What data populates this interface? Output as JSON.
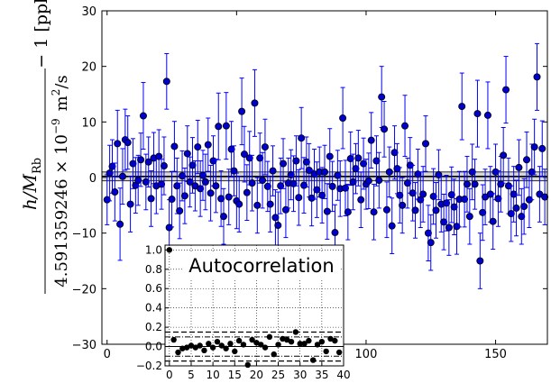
{
  "chart_data": [
    {
      "type": "scatter",
      "title": "",
      "xlabel": "",
      "ylabel_parts": {
        "numerator": "h/M",
        "numerator_sub": "Rb",
        "denominator": "4.591359246 × 10",
        "denominator_exp": "−9",
        "denominator_unit": "m",
        "denominator_unit_exp": "2",
        "denominator_tail": "/s",
        "suffix": "− 1 [ppb]"
      },
      "xlim": [
        -2,
        170
      ],
      "ylim": [
        -30,
        30
      ],
      "x_ticks": [
        0,
        50,
        100,
        150
      ],
      "x_tick_labels": [
        "0",
        "50",
        "100",
        "150"
      ],
      "y_ticks": [
        -30,
        -20,
        -10,
        0,
        10,
        20,
        30
      ],
      "y_tick_labels": [
        "−30",
        "−20",
        "−10",
        "0",
        "10",
        "20",
        "30"
      ],
      "reference_line": {
        "y": 0.2,
        "band": [
          -0.6,
          1.0
        ]
      },
      "marker_color": "#0000cc",
      "error_color": "#0000ff",
      "points": [
        {
          "x": 0,
          "y": -4.0,
          "e": 4.5
        },
        {
          "x": 1,
          "y": 0.8,
          "e": 5.0
        },
        {
          "x": 2,
          "y": 2.0,
          "e": 4.8
        },
        {
          "x": 3,
          "y": -2.6,
          "e": 5.2
        },
        {
          "x": 4,
          "y": 6.1,
          "e": 6.0
        },
        {
          "x": 5,
          "y": -8.4,
          "e": 6.5
        },
        {
          "x": 6,
          "y": 0.2,
          "e": 5.0
        },
        {
          "x": 7,
          "y": 6.8,
          "e": 5.5
        },
        {
          "x": 8,
          "y": 6.3,
          "e": 4.8
        },
        {
          "x": 9,
          "y": -4.8,
          "e": 5.0
        },
        {
          "x": 10,
          "y": 2.5,
          "e": 4.5
        },
        {
          "x": 11,
          "y": -1.4,
          "e": 5.0
        },
        {
          "x": 12,
          "y": -0.5,
          "e": 4.5
        },
        {
          "x": 13,
          "y": 3.2,
          "e": 4.8
        },
        {
          "x": 14,
          "y": 11.1,
          "e": 6.0
        },
        {
          "x": 15,
          "y": -0.8,
          "e": 5.0
        },
        {
          "x": 16,
          "y": 2.8,
          "e": 4.5
        },
        {
          "x": 17,
          "y": -3.8,
          "e": 5.0
        },
        {
          "x": 18,
          "y": 3.5,
          "e": 4.6
        },
        {
          "x": 19,
          "y": -1.5,
          "e": 5.0
        },
        {
          "x": 20,
          "y": 3.8,
          "e": 4.8
        },
        {
          "x": 21,
          "y": -1.2,
          "e": 4.5
        },
        {
          "x": 22,
          "y": 2.1,
          "e": 5.2
        },
        {
          "x": 23,
          "y": 17.3,
          "e": 5.0
        },
        {
          "x": 24,
          "y": -9.0,
          "e": 5.0
        },
        {
          "x": 25,
          "y": -3.9,
          "e": 5.0
        },
        {
          "x": 26,
          "y": 5.6,
          "e": 4.5
        },
        {
          "x": 27,
          "y": -1.5,
          "e": 5.0
        },
        {
          "x": 28,
          "y": -6.0,
          "e": 5.0
        },
        {
          "x": 29,
          "y": 0.3,
          "e": 4.5
        },
        {
          "x": 30,
          "y": -3.3,
          "e": 5.0
        },
        {
          "x": 31,
          "y": 4.3,
          "e": 5.0
        },
        {
          "x": 32,
          "y": -0.8,
          "e": 4.5
        },
        {
          "x": 33,
          "y": 2.2,
          "e": 5.0
        },
        {
          "x": 34,
          "y": -1.5,
          "e": 4.5
        },
        {
          "x": 35,
          "y": 5.5,
          "e": 4.8
        },
        {
          "x": 36,
          "y": -2.0,
          "e": 5.0
        },
        {
          "x": 37,
          "y": 0.4,
          "e": 4.5
        },
        {
          "x": 38,
          "y": -0.8,
          "e": 5.0
        },
        {
          "x": 39,
          "y": 5.9,
          "e": 4.8
        },
        {
          "x": 40,
          "y": -2.8,
          "e": 5.0
        },
        {
          "x": 41,
          "y": 3.0,
          "e": 4.5
        },
        {
          "x": 42,
          "y": -1.5,
          "e": 4.8
        },
        {
          "x": 43,
          "y": 9.2,
          "e": 6.0
        },
        {
          "x": 44,
          "y": -3.8,
          "e": 5.0
        },
        {
          "x": 45,
          "y": -7.0,
          "e": 5.0
        },
        {
          "x": 46,
          "y": 9.3,
          "e": 6.0
        },
        {
          "x": 47,
          "y": -3.5,
          "e": 5.0
        },
        {
          "x": 48,
          "y": 5.1,
          "e": 5.0
        },
        {
          "x": 49,
          "y": 1.2,
          "e": 4.5
        },
        {
          "x": 50,
          "y": -4.2,
          "e": 5.0
        },
        {
          "x": 51,
          "y": -4.8,
          "e": 5.0
        },
        {
          "x": 52,
          "y": 11.9,
          "e": 6.0
        },
        {
          "x": 53,
          "y": 4.2,
          "e": 5.0
        },
        {
          "x": 54,
          "y": -2.7,
          "e": 5.0
        },
        {
          "x": 55,
          "y": 3.5,
          "e": 4.8
        },
        {
          "x": 56,
          "y": -1.0,
          "e": 5.0
        },
        {
          "x": 57,
          "y": 13.4,
          "e": 6.0
        },
        {
          "x": 58,
          "y": -5.0,
          "e": 5.0
        },
        {
          "x": 59,
          "y": 3.5,
          "e": 4.5
        },
        {
          "x": 60,
          "y": -0.5,
          "e": 5.0
        },
        {
          "x": 61,
          "y": 5.5,
          "e": 5.0
        },
        {
          "x": 62,
          "y": -1.6,
          "e": 4.5
        },
        {
          "x": 63,
          "y": -4.8,
          "e": 5.0
        },
        {
          "x": 64,
          "y": 1.2,
          "e": 4.5
        },
        {
          "x": 65,
          "y": -7.2,
          "e": 5.0
        },
        {
          "x": 66,
          "y": -8.6,
          "e": 6.0
        },
        {
          "x": 67,
          "y": -1.5,
          "e": 5.0
        },
        {
          "x": 68,
          "y": 2.5,
          "e": 4.5
        },
        {
          "x": 69,
          "y": -5.8,
          "e": 5.0
        },
        {
          "x": 70,
          "y": -1.0,
          "e": 4.5
        },
        {
          "x": 71,
          "y": 0.5,
          "e": 4.5
        },
        {
          "x": 72,
          "y": -1.1,
          "e": 5.0
        },
        {
          "x": 73,
          "y": 3.0,
          "e": 4.5
        },
        {
          "x": 74,
          "y": -3.6,
          "e": 5.0
        },
        {
          "x": 75,
          "y": 7.1,
          "e": 5.5
        },
        {
          "x": 76,
          "y": -1.4,
          "e": 5.0
        },
        {
          "x": 77,
          "y": 2.8,
          "e": 4.5
        },
        {
          "x": 78,
          "y": 1.3,
          "e": 4.8
        },
        {
          "x": 79,
          "y": -3.7,
          "e": 5.0
        },
        {
          "x": 80,
          "y": 0.6,
          "e": 4.5
        },
        {
          "x": 81,
          "y": -2.2,
          "e": 5.0
        },
        {
          "x": 82,
          "y": 1.0,
          "e": 4.5
        },
        {
          "x": 83,
          "y": -3.2,
          "e": 5.0
        },
        {
          "x": 84,
          "y": 1.0,
          "e": 4.8
        },
        {
          "x": 85,
          "y": -6.1,
          "e": 5.0
        },
        {
          "x": 86,
          "y": 3.8,
          "e": 5.0
        },
        {
          "x": 87,
          "y": -1.6,
          "e": 4.5
        },
        {
          "x": 88,
          "y": -9.9,
          "e": 5.0
        },
        {
          "x": 89,
          "y": 0.4,
          "e": 4.5
        },
        {
          "x": 90,
          "y": -2.0,
          "e": 5.0
        },
        {
          "x": 91,
          "y": 10.7,
          "e": 5.5
        },
        {
          "x": 92,
          "y": -1.9,
          "e": 5.0
        },
        {
          "x": 93,
          "y": -6.2,
          "e": 5.0
        },
        {
          "x": 94,
          "y": 3.4,
          "e": 4.8
        },
        {
          "x": 95,
          "y": -0.8,
          "e": 5.0
        },
        {
          "x": 96,
          "y": 1.6,
          "e": 4.5
        },
        {
          "x": 97,
          "y": 3.5,
          "e": 5.0
        },
        {
          "x": 98,
          "y": -4.0,
          "e": 5.0
        },
        {
          "x": 99,
          "y": 2.5,
          "e": 4.6
        },
        {
          "x": 100,
          "y": -1.2,
          "e": 4.5
        },
        {
          "x": 101,
          "y": -0.6,
          "e": 5.0
        },
        {
          "x": 102,
          "y": 6.7,
          "e": 5.0
        },
        {
          "x": 103,
          "y": -6.2,
          "e": 5.0
        },
        {
          "x": 104,
          "y": 3.0,
          "e": 4.5
        },
        {
          "x": 105,
          "y": -0.5,
          "e": 5.0
        },
        {
          "x": 106,
          "y": 14.5,
          "e": 5.5
        },
        {
          "x": 107,
          "y": 8.7,
          "e": 5.0
        },
        {
          "x": 108,
          "y": -5.8,
          "e": 5.0
        },
        {
          "x": 109,
          "y": 1.0,
          "e": 4.5
        },
        {
          "x": 110,
          "y": -8.7,
          "e": 5.0
        },
        {
          "x": 111,
          "y": 4.5,
          "e": 4.8
        },
        {
          "x": 112,
          "y": 1.6,
          "e": 4.5
        },
        {
          "x": 113,
          "y": -3.2,
          "e": 5.0
        },
        {
          "x": 114,
          "y": -5.0,
          "e": 5.0
        },
        {
          "x": 115,
          "y": 9.3,
          "e": 5.5
        },
        {
          "x": 116,
          "y": -1.0,
          "e": 4.5
        },
        {
          "x": 117,
          "y": 2.2,
          "e": 5.0
        },
        {
          "x": 118,
          "y": -2.8,
          "e": 5.0
        },
        {
          "x": 119,
          "y": -5.9,
          "e": 5.0
        },
        {
          "x": 120,
          "y": 0.6,
          "e": 4.5
        },
        {
          "x": 121,
          "y": -4.0,
          "e": 5.0
        },
        {
          "x": 122,
          "y": -3.0,
          "e": 5.0
        },
        {
          "x": 123,
          "y": 6.1,
          "e": 5.0
        },
        {
          "x": 124,
          "y": -10.0,
          "e": 5.0
        },
        {
          "x": 125,
          "y": -11.7,
          "e": 5.0
        },
        {
          "x": 126,
          "y": -3.4,
          "e": 5.0
        },
        {
          "x": 127,
          "y": -5.9,
          "e": 5.0
        },
        {
          "x": 128,
          "y": 0.5,
          "e": 4.5
        },
        {
          "x": 129,
          "y": -4.8,
          "e": 5.0
        },
        {
          "x": 130,
          "y": -8.0,
          "e": 5.0
        },
        {
          "x": 131,
          "y": -4.6,
          "e": 5.0
        },
        {
          "x": 132,
          "y": -9.0,
          "e": 5.0
        },
        {
          "x": 133,
          "y": -3.1,
          "e": 5.0
        },
        {
          "x": 134,
          "y": -5.3,
          "e": 5.0
        },
        {
          "x": 135,
          "y": -8.8,
          "e": 5.0
        },
        {
          "x": 136,
          "y": -3.9,
          "e": 5.0
        },
        {
          "x": 137,
          "y": 12.8,
          "e": 6.0
        },
        {
          "x": 138,
          "y": -3.9,
          "e": 5.0
        },
        {
          "x": 139,
          "y": -1.2,
          "e": 5.0
        },
        {
          "x": 140,
          "y": -7.0,
          "e": 5.0
        },
        {
          "x": 141,
          "y": 1.0,
          "e": 5.0
        },
        {
          "x": 142,
          "y": -1.2,
          "e": 4.5
        },
        {
          "x": 143,
          "y": 11.5,
          "e": 6.0
        },
        {
          "x": 144,
          "y": -15.0,
          "e": 5.0
        },
        {
          "x": 145,
          "y": -6.3,
          "e": 5.0
        },
        {
          "x": 146,
          "y": -3.5,
          "e": 5.0
        },
        {
          "x": 147,
          "y": 11.2,
          "e": 6.0
        },
        {
          "x": 148,
          "y": -3.0,
          "e": 5.0
        },
        {
          "x": 149,
          "y": -7.9,
          "e": 5.0
        },
        {
          "x": 150,
          "y": 1.0,
          "e": 5.0
        },
        {
          "x": 151,
          "y": -3.8,
          "e": 5.0
        },
        {
          "x": 152,
          "y": -1.2,
          "e": 5.0
        },
        {
          "x": 153,
          "y": 4.0,
          "e": 5.0
        },
        {
          "x": 154,
          "y": 15.8,
          "e": 6.0
        },
        {
          "x": 155,
          "y": -1.5,
          "e": 5.0
        },
        {
          "x": 156,
          "y": -6.5,
          "e": 5.0
        },
        {
          "x": 157,
          "y": -3.0,
          "e": 5.0
        },
        {
          "x": 158,
          "y": -5.5,
          "e": 5.0
        },
        {
          "x": 159,
          "y": 1.8,
          "e": 5.0
        },
        {
          "x": 160,
          "y": -7.0,
          "e": 5.0
        },
        {
          "x": 161,
          "y": -5.2,
          "e": 5.0
        },
        {
          "x": 162,
          "y": 3.2,
          "e": 5.0
        },
        {
          "x": 163,
          "y": -4.0,
          "e": 5.0
        },
        {
          "x": 164,
          "y": 1.0,
          "e": 5.0
        },
        {
          "x": 165,
          "y": 5.5,
          "e": 5.0
        },
        {
          "x": 166,
          "y": 18.1,
          "e": 6.0
        },
        {
          "x": 167,
          "y": -3.0,
          "e": 5.0
        },
        {
          "x": 168,
          "y": 5.2,
          "e": 5.0
        },
        {
          "x": 169,
          "y": -3.5,
          "e": 5.0
        }
      ]
    },
    {
      "type": "scatter",
      "title": "Autocorrelation",
      "xlim": [
        -1,
        40
      ],
      "ylim": [
        -0.2,
        1.05
      ],
      "x_ticks": [
        0,
        5,
        10,
        15,
        20,
        25,
        30,
        35,
        40
      ],
      "x_tick_labels": [
        "0",
        "5",
        "10",
        "15",
        "20",
        "25",
        "30",
        "35",
        "40"
      ],
      "y_ticks": [
        -0.2,
        0.0,
        0.2,
        0.4,
        0.6,
        0.8,
        1.0
      ],
      "y_tick_labels": [
        "−0.2",
        "0.0",
        "0.2",
        "0.4",
        "0.6",
        "0.8",
        "1.0"
      ],
      "grid": "dotted",
      "significance_lines": [
        0.15,
        -0.15
      ],
      "dashdot_lines": [
        0.1,
        -0.1
      ],
      "zero_line": 0,
      "marker_color": "#000000",
      "lags": [
        0,
        1,
        2,
        3,
        4,
        5,
        6,
        7,
        8,
        9,
        10,
        11,
        12,
        13,
        14,
        15,
        16,
        17,
        18,
        19,
        20,
        21,
        22,
        23,
        24,
        25,
        26,
        27,
        28,
        29,
        30,
        31,
        32,
        33,
        34,
        35,
        36,
        37,
        38,
        39
      ],
      "values": [
        1.0,
        0.07,
        -0.06,
        -0.02,
        -0.01,
        0.01,
        -0.01,
        0.01,
        -0.04,
        0.03,
        -0.01,
        0.05,
        0.01,
        -0.02,
        0.03,
        -0.05,
        0.06,
        0.02,
        -0.19,
        0.07,
        0.04,
        0.02,
        -0.01,
        0.1,
        -0.08,
        0.02,
        0.08,
        0.07,
        0.05,
        0.15,
        0.03,
        0.03,
        0.06,
        -0.14,
        0.02,
        0.05,
        -0.05,
        0.08,
        0.06,
        -0.06
      ]
    }
  ]
}
